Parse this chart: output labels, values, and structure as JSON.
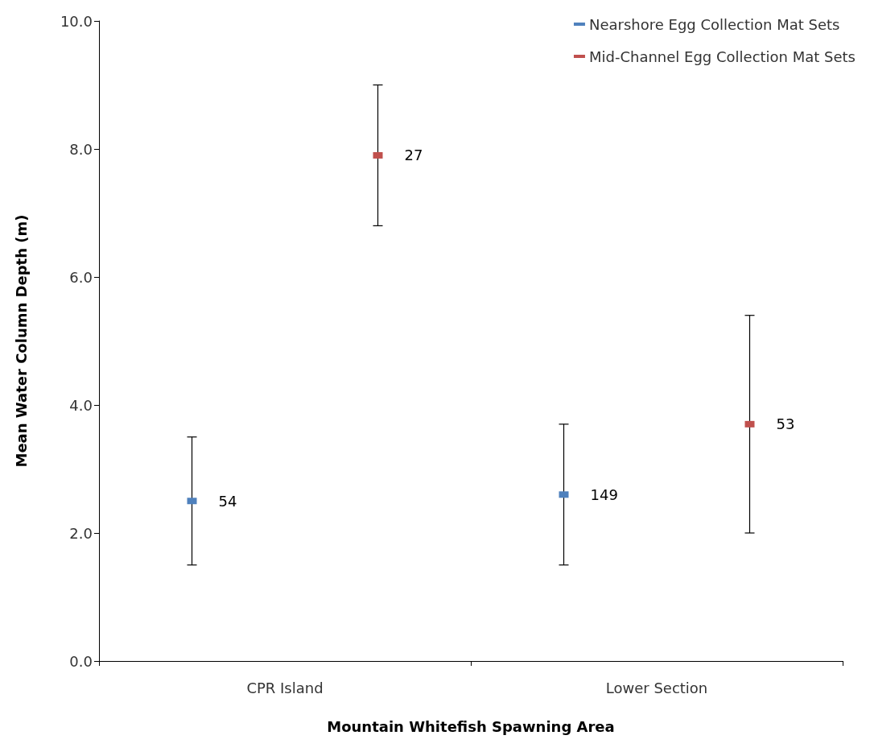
{
  "chart_data": {
    "type": "scatter",
    "xlabel": "Mountain Whitefish Spawning Area",
    "ylabel": "Mean Water Column Depth (m)",
    "categories": [
      null,
      null,
      "CPR Island",
      null,
      null,
      null,
      "Lower Section",
      null,
      null
    ],
    "series": [
      {
        "name": "Nearshore Egg Collection Mat Sets",
        "color": "#4f81bd",
        "values": [
          null,
          2.5,
          null,
          null,
          null,
          2.6,
          null,
          null,
          null
        ],
        "errors": [
          null,
          [
            1.5,
            3.5
          ],
          null,
          null,
          null,
          [
            1.5,
            3.7
          ],
          null,
          null,
          null
        ]
      },
      {
        "name": "Mid-Channel Egg Collection Mat Sets",
        "color": "#c0504d",
        "values": [
          null,
          null,
          null,
          7.9,
          null,
          null,
          null,
          3.7,
          null
        ],
        "errors": [
          null,
          null,
          null,
          [
            6.8,
            9.0
          ],
          null,
          null,
          null,
          [
            2.0,
            5.4
          ],
          null
        ]
      }
    ],
    "annotations": [
      "54",
      "149",
      "27",
      "53"
    ],
    "ylim": [
      0,
      10
    ],
    "yticks": [
      {
        "value": 0,
        "label": "0.0"
      },
      {
        "value": 2,
        "label": "2.0"
      },
      {
        "value": 4,
        "label": "4.0"
      },
      {
        "value": 6,
        "label": "6.0"
      },
      {
        "value": 8,
        "label": "8.0"
      },
      {
        "value": 10,
        "label": "10.0"
      }
    ],
    "marker": "square",
    "legend": "top right",
    "grid": false
  }
}
